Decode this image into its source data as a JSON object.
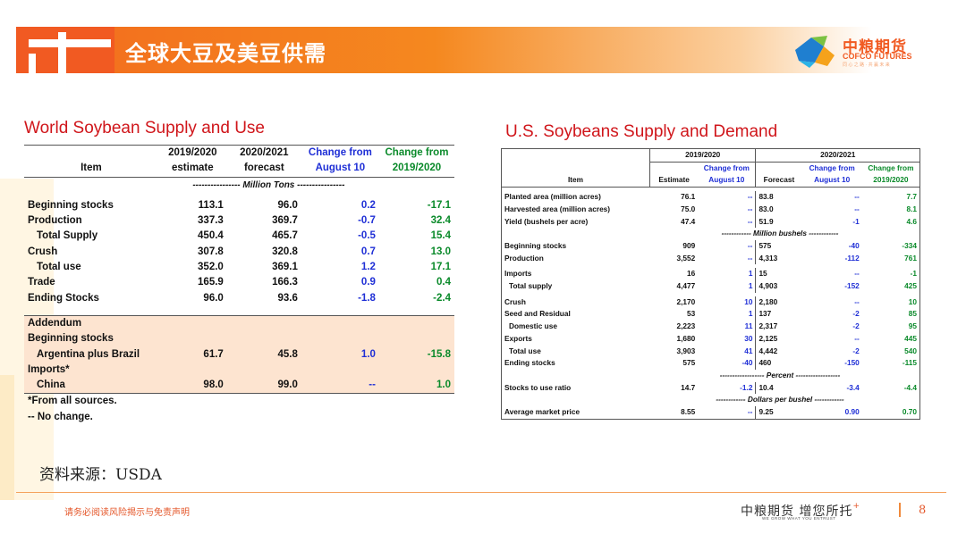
{
  "header": {
    "title": "全球大豆及美豆供需",
    "brand_cn": "中粮期货",
    "brand_en": "COFCO FUTURES",
    "brand_tagline": "同 心 之 路 · 共 赢 未 来"
  },
  "world": {
    "title": "World Soybean Supply and Use",
    "headers": {
      "item": "Item",
      "c2a": "2019/2020",
      "c2b": "estimate",
      "c3a": "2020/2021",
      "c3b": "forecast",
      "c4a": "Change from",
      "c4b": "August 10",
      "c5a": "Change from",
      "c5b": "2019/2020"
    },
    "units": "---------------- Million Tons ----------------",
    "rows": [
      {
        "item": "Beginning stocks",
        "v1": "113.1",
        "v2": "96.0",
        "v3": "0.2",
        "v4": "-17.1"
      },
      {
        "item": "Production",
        "v1": "337.3",
        "v2": "369.7",
        "v3": "-0.7",
        "v4": "32.4"
      },
      {
        "item": "Total Supply",
        "v1": "450.4",
        "v2": "465.7",
        "v3": "-0.5",
        "v4": "15.4"
      },
      {
        "item": "Crush",
        "v1": "307.8",
        "v2": "320.8",
        "v3": "0.7",
        "v4": "13.0"
      },
      {
        "item": "Total use",
        "v1": "352.0",
        "v2": "369.1",
        "v3": "1.2",
        "v4": "17.1"
      },
      {
        "item": "Trade",
        "v1": "165.9",
        "v2": "166.3",
        "v3": "0.9",
        "v4": "0.4"
      },
      {
        "item": "Ending Stocks",
        "v1": "96.0",
        "v2": "93.6",
        "v3": "-1.8",
        "v4": "-2.4"
      }
    ],
    "addendum": {
      "label": "Addendum",
      "beg": "Beginning stocks",
      "arg": {
        "item": "Argentina plus Brazil",
        "v1": "61.7",
        "v2": "45.8",
        "v3": "1.0",
        "v4": "-15.8"
      },
      "imports": "Imports*",
      "china": {
        "item": "China",
        "v1": "98.0",
        "v2": "99.0",
        "v3": "--",
        "v4": "1.0"
      }
    },
    "notes": [
      "*From all sources.",
      "-- No change."
    ]
  },
  "us": {
    "title": "U.S. Soybeans Supply and Demand",
    "headers": {
      "y1": "2019/2020",
      "y2": "2020/2021",
      "item": "Item",
      "est": "Estimate",
      "chg_a": "Change from",
      "chg_b": "August 10",
      "fc": "Forecast",
      "chg2_a": "Change from",
      "chg2_b": "August 10",
      "chg3_a": "Change from",
      "chg3_b": "2019/2020"
    },
    "rows_a": [
      {
        "item": "Planted area (million acres)",
        "e": "76.1",
        "c1": "--",
        "f": "83.8",
        "c2": "--",
        "c3": "7.7"
      },
      {
        "item": "Harvested area (million acres)",
        "e": "75.0",
        "c1": "--",
        "f": "83.0",
        "c2": "--",
        "c3": "8.1"
      },
      {
        "item": "Yield (bushels per acre)",
        "e": "47.4",
        "c1": "--",
        "f": "51.9",
        "c2": "-1",
        "c3": "4.6"
      }
    ],
    "units_bushels": "------------ Million bushels ------------",
    "rows_b": [
      {
        "item": "Beginning stocks",
        "e": "909",
        "c1": "--",
        "f": "575",
        "c2": "-40",
        "c3": "-334"
      },
      {
        "item": "Production",
        "e": "3,552",
        "c1": "--",
        "f": "4,313",
        "c2": "-112",
        "c3": "761"
      },
      {
        "item": "Imports",
        "e": "16",
        "c1": "1",
        "f": "15",
        "c2": "--",
        "c3": "-1"
      },
      {
        "item": "Total supply",
        "e": "4,477",
        "c1": "1",
        "f": "4,903",
        "c2": "-152",
        "c3": "425"
      },
      {
        "item": "Crush",
        "e": "2,170",
        "c1": "10",
        "f": "2,180",
        "c2": "--",
        "c3": "10"
      },
      {
        "item": "Seed and Residual",
        "e": "53",
        "c1": "1",
        "f": "137",
        "c2": "-2",
        "c3": "85"
      },
      {
        "item": "Domestic use",
        "e": "2,223",
        "c1": "11",
        "f": "2,317",
        "c2": "-2",
        "c3": "95"
      },
      {
        "item": "Exports",
        "e": "1,680",
        "c1": "30",
        "f": "2,125",
        "c2": "--",
        "c3": "445"
      },
      {
        "item": "Total use",
        "e": "3,903",
        "c1": "41",
        "f": "4,442",
        "c2": "-2",
        "c3": "540"
      },
      {
        "item": "Ending stocks",
        "e": "575",
        "c1": "-40",
        "f": "460",
        "c2": "-150",
        "c3": "-115"
      }
    ],
    "units_percent": "------------------ Percent ------------------",
    "ratio": {
      "item": "Stocks to use ratio",
      "e": "14.7",
      "c1": "-1.2",
      "f": "10.4",
      "c2": "-3.4",
      "c3": "-4.4"
    },
    "units_dollars": "------------ Dollars per bushel ------------",
    "price": {
      "item": "Average market price",
      "e": "8.55",
      "c1": "--",
      "f": "9.25",
      "c2": "0.90",
      "c3": "0.70"
    }
  },
  "footer": {
    "source": "资料来源：USDA",
    "disclaimer": "请务必阅读风险揭示与免责声明",
    "slogan": "中粮期货 增您所托",
    "slogan_sup": "+",
    "slogan_en": "WE GROW WHAT YOU ENTRUST",
    "page": "8"
  }
}
